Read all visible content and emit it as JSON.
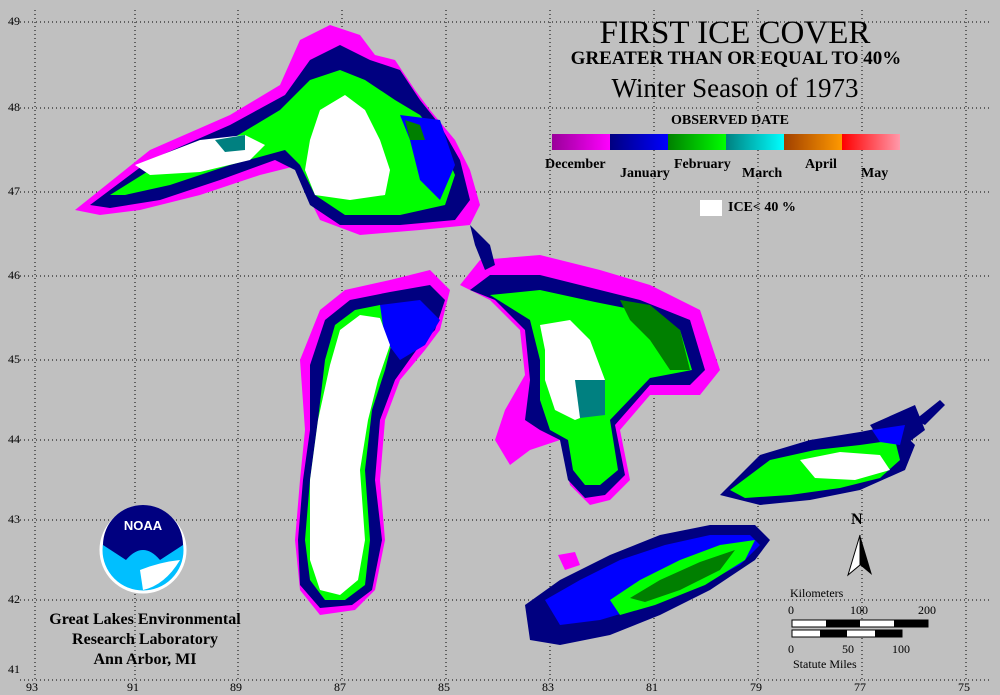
{
  "title": {
    "line1": "FIRST ICE COVER",
    "line2": "GREATER THAN OR EQUAL TO 40%",
    "line3": "Winter Season of 1973"
  },
  "legend": {
    "title": "OBSERVED DATE",
    "months": [
      {
        "label": "December",
        "colors": [
          "#990099",
          "#ff00ff"
        ]
      },
      {
        "label": "January",
        "colors": [
          "#000080",
          "#0000ff"
        ]
      },
      {
        "label": "February",
        "colors": [
          "#007f00",
          "#00ff00"
        ]
      },
      {
        "label": "March",
        "colors": [
          "#008080",
          "#00ffff"
        ]
      },
      {
        "label": "April",
        "colors": [
          "#a04000",
          "#ff9900"
        ]
      },
      {
        "label": "May",
        "colors": [
          "#ff0000",
          "#ff99aa"
        ]
      }
    ],
    "ice_label": "ICE< 40 %"
  },
  "axes": {
    "latitudes": [
      "49",
      "48",
      "47",
      "46",
      "45",
      "44",
      "43",
      "42",
      "41"
    ],
    "longitudes": [
      "93",
      "91",
      "89",
      "87",
      "85",
      "83",
      "81",
      "79",
      "77",
      "75"
    ]
  },
  "organization": {
    "line1": "Great Lakes Environmental",
    "line2": "Research Laboratory",
    "line3": "Ann Arbor, MI",
    "logo_text": "NOAA"
  },
  "north_arrow": {
    "label": "N"
  },
  "scale": {
    "km_label": "Kilometers",
    "km_ticks": [
      "0",
      "100",
      "200"
    ],
    "mi_label": "Statute Miles",
    "mi_ticks": [
      "0",
      "50",
      "100"
    ]
  },
  "colors": {
    "background": "#c0c0c0",
    "ice_lt_40": "#ffffff",
    "grid": "#000000"
  }
}
